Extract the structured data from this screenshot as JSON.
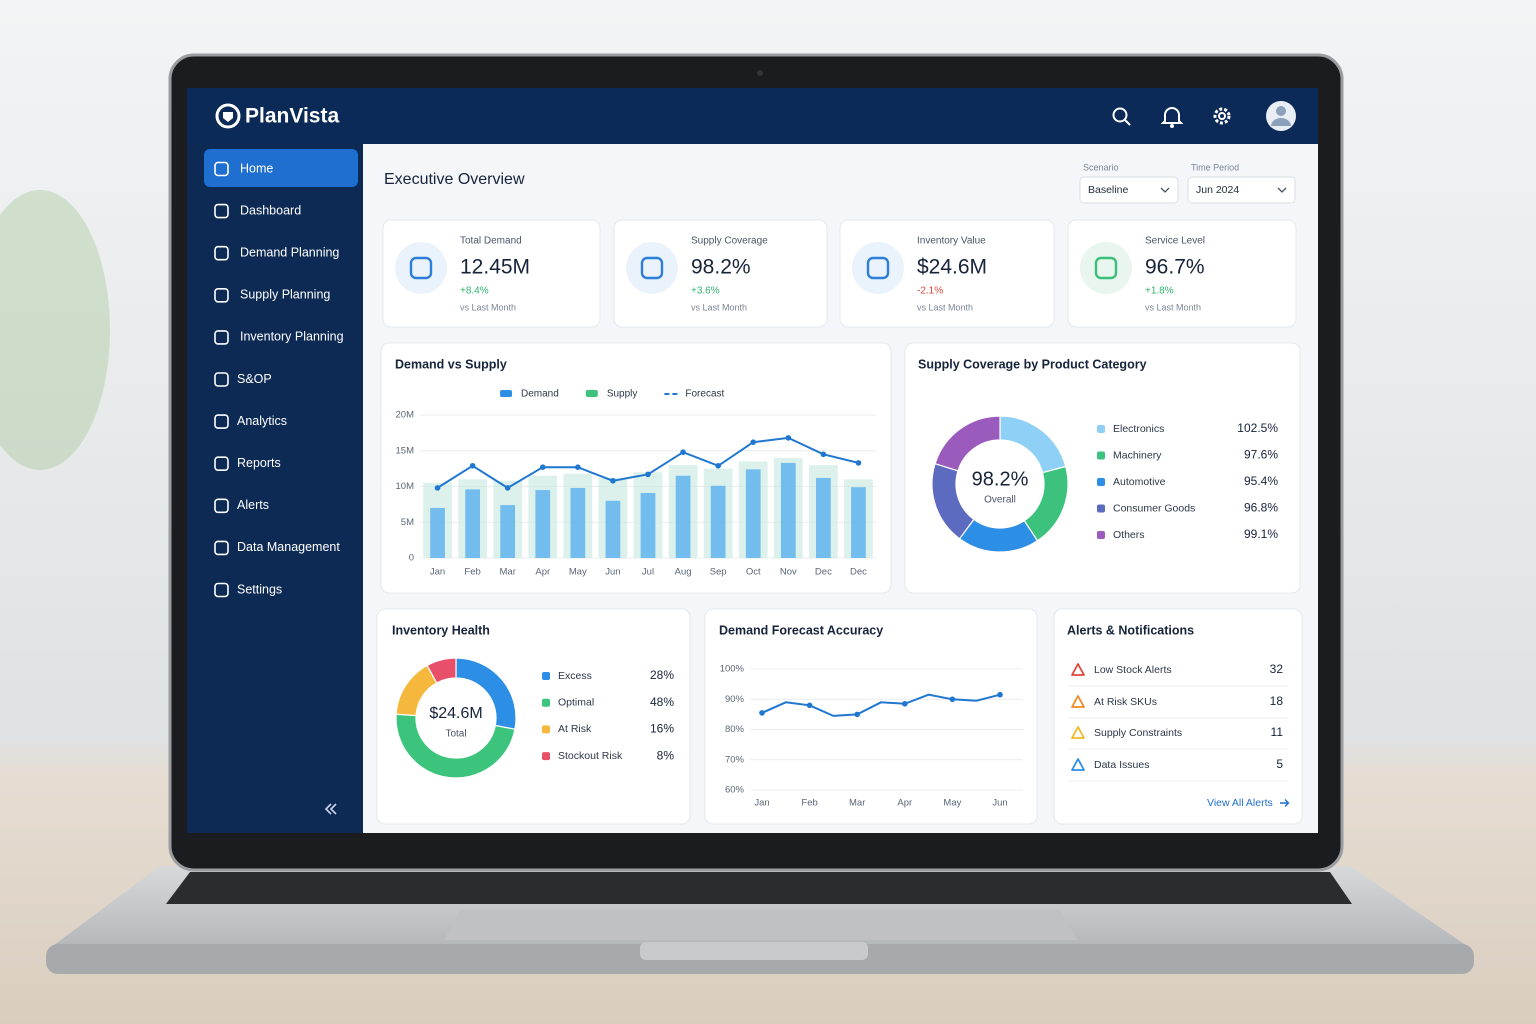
{
  "app": {
    "name": "PlanVista"
  },
  "nav": {
    "items": [
      "Home",
      "Dashboard",
      "Demand Planning",
      "Supply Planning",
      "Inventory Planning",
      "S&OP",
      "Analytics",
      "Reports",
      "Alerts",
      "Data Management",
      "Settings"
    ]
  },
  "page": {
    "title": "Executive Overview"
  },
  "filters": [
    {
      "label": "Scenario",
      "value": "Baseline"
    },
    {
      "label": "Time Period",
      "value": "Jun 2024"
    }
  ],
  "kpis": [
    {
      "label": "Total Demand",
      "value": "12.45M",
      "change": "+8.4%",
      "note": "vs Last Month"
    },
    {
      "label": "Supply Coverage",
      "value": "98.2%",
      "change": "+3.6%",
      "note": "vs Last Month"
    },
    {
      "label": "Inventory Value",
      "value": "$24.6M",
      "change": "-2.1%",
      "note": "vs Last Month"
    },
    {
      "label": "Service Level",
      "value": "96.7%",
      "change": "+1.8%",
      "note": "vs Last Month"
    }
  ],
  "chart_data": [
    {
      "type": "bar",
      "title": "Demand vs Supply",
      "categories": [
        "Jan",
        "Feb",
        "Mar",
        "Apr",
        "May",
        "Jun",
        "Jul",
        "Aug",
        "Sep",
        "Oct",
        "Nov",
        "Dec",
        "Dec"
      ],
      "series": [
        {
          "name": "Demand",
          "type": "bar",
          "color": "#6cb9ee",
          "values": [
            7.0,
            9.6,
            7.4,
            9.5,
            9.8,
            8.0,
            9.1,
            11.5,
            10.1,
            12.4,
            13.3,
            11.2,
            9.9
          ]
        },
        {
          "name": "Supply",
          "type": "bar",
          "color": "#cdebe3",
          "values": [
            10.5,
            11.0,
            10.8,
            11.5,
            11.8,
            11.2,
            12.0,
            13.0,
            12.5,
            13.5,
            14.0,
            13.0,
            11.0
          ]
        },
        {
          "name": "Forecast",
          "type": "line",
          "color": "#1f77d0",
          "values": [
            9.8,
            12.9,
            9.8,
            12.7,
            12.7,
            10.8,
            11.7,
            14.8,
            12.9,
            16.2,
            16.8,
            14.5,
            13.3
          ]
        }
      ],
      "ylim": [
        0,
        20
      ],
      "yticks": [
        0,
        {
          "value": 5,
          "label": "5M"
        },
        {
          "value": 10,
          "label": "10M"
        },
        {
          "value": 15,
          "label": "15M"
        },
        {
          "value": 20,
          "label": "20M"
        }
      ],
      "grid": true
    },
    {
      "type": "donut",
      "title": "Supply Coverage by Product Category",
      "center_value": "98.2%",
      "center_label": "Overall",
      "categories": [
        "Electronics",
        "Machinery",
        "Automotive",
        "Consumer Goods",
        "Others"
      ],
      "values": [
        102.5,
        97.6,
        95.4,
        96.8,
        99.1
      ],
      "value_labels": [
        "102.5%",
        "97.6%",
        "95.4%",
        "96.8%",
        "99.1%"
      ],
      "colors": [
        "#8fd0f7",
        "#3dc27e",
        "#2d8ee6",
        "#5c6bc0",
        "#9b5bbd"
      ]
    },
    {
      "type": "donut",
      "title": "Inventory Health",
      "center_value": "$24.6M",
      "center_label": "Total",
      "categories": [
        "Excess",
        "Optimal",
        "At Risk",
        "Stockout Risk"
      ],
      "values": [
        28,
        48,
        16,
        8
      ],
      "value_labels": [
        "28%",
        "48%",
        "16%",
        "8%"
      ],
      "colors": [
        "#2d8ee6",
        "#3cc47c",
        "#f5b83d",
        "#e8506a"
      ]
    },
    {
      "type": "line",
      "title": "Demand Forecast Accuracy",
      "categories": [
        "Jan",
        null,
        "Feb",
        null,
        "Mar",
        null,
        "Apr",
        null,
        "May",
        null,
        "Jun"
      ],
      "values": [
        85.5,
        89.0,
        88.0,
        84.5,
        85.0,
        89.0,
        88.5,
        91.5,
        90.0,
        89.5,
        91.5
      ],
      "color": "#1f77d0",
      "ylim": [
        60,
        100
      ],
      "yticks": [
        {
          "value": 60,
          "label": "60%"
        },
        {
          "value": 70,
          "label": "70%"
        },
        {
          "value": 80,
          "label": "80%"
        },
        {
          "value": 90,
          "label": "90%"
        },
        {
          "value": 100,
          "label": "100%"
        }
      ],
      "grid": true
    }
  ],
  "alerts": {
    "title": "Alerts & Notifications",
    "items": [
      {
        "label": "Low Stock Alerts",
        "value": 32,
        "color": "#e0453a"
      },
      {
        "label": "At Risk SKUs",
        "value": 18,
        "color": "#f08a24"
      },
      {
        "label": "Supply Constraints",
        "value": 11,
        "color": "#f2b928"
      },
      {
        "label": "Data Issues",
        "value": 5,
        "color": "#2d8ee6"
      }
    ],
    "link": "View All Alerts"
  }
}
